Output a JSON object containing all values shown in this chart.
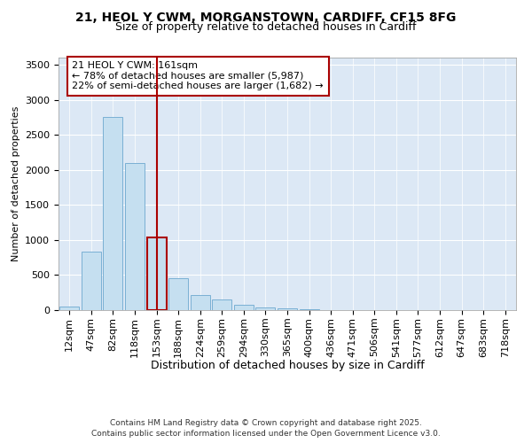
{
  "title_line1": "21, HEOL Y CWM, MORGANSTOWN, CARDIFF, CF15 8FG",
  "title_line2": "Size of property relative to detached houses in Cardiff",
  "xlabel": "Distribution of detached houses by size in Cardiff",
  "ylabel": "Number of detached properties",
  "categories": [
    "12sqm",
    "47sqm",
    "82sqm",
    "118sqm",
    "153sqm",
    "188sqm",
    "224sqm",
    "259sqm",
    "294sqm",
    "330sqm",
    "365sqm",
    "400sqm",
    "436sqm",
    "471sqm",
    "506sqm",
    "541sqm",
    "577sqm",
    "612sqm",
    "647sqm",
    "683sqm",
    "718sqm"
  ],
  "values": [
    55,
    840,
    2750,
    2100,
    1030,
    460,
    210,
    150,
    80,
    40,
    30,
    15,
    5,
    2,
    0,
    0,
    0,
    0,
    0,
    0,
    0
  ],
  "bar_color": "#c5dff0",
  "bar_edge_color": "#7ab0d4",
  "highlight_bar_index": 4,
  "highlight_bar_edge_color": "#aa0000",
  "vline_color": "#aa0000",
  "annotation_text": "21 HEOL Y CWM: 161sqm\n← 78% of detached houses are smaller (5,987)\n22% of semi-detached houses are larger (1,682) →",
  "annotation_box_color": "#ffffff",
  "annotation_box_edge_color": "#aa0000",
  "ylim": [
    0,
    3600
  ],
  "yticks": [
    0,
    500,
    1000,
    1500,
    2000,
    2500,
    3000,
    3500
  ],
  "plot_background_color": "#dce8f5",
  "footer_line1": "Contains HM Land Registry data © Crown copyright and database right 2025.",
  "footer_line2": "Contains public sector information licensed under the Open Government Licence v3.0.",
  "title_fontsize": 10,
  "subtitle_fontsize": 9,
  "tick_fontsize": 8,
  "xlabel_fontsize": 9,
  "ylabel_fontsize": 8,
  "annotation_fontsize": 8,
  "footer_fontsize": 6.5
}
